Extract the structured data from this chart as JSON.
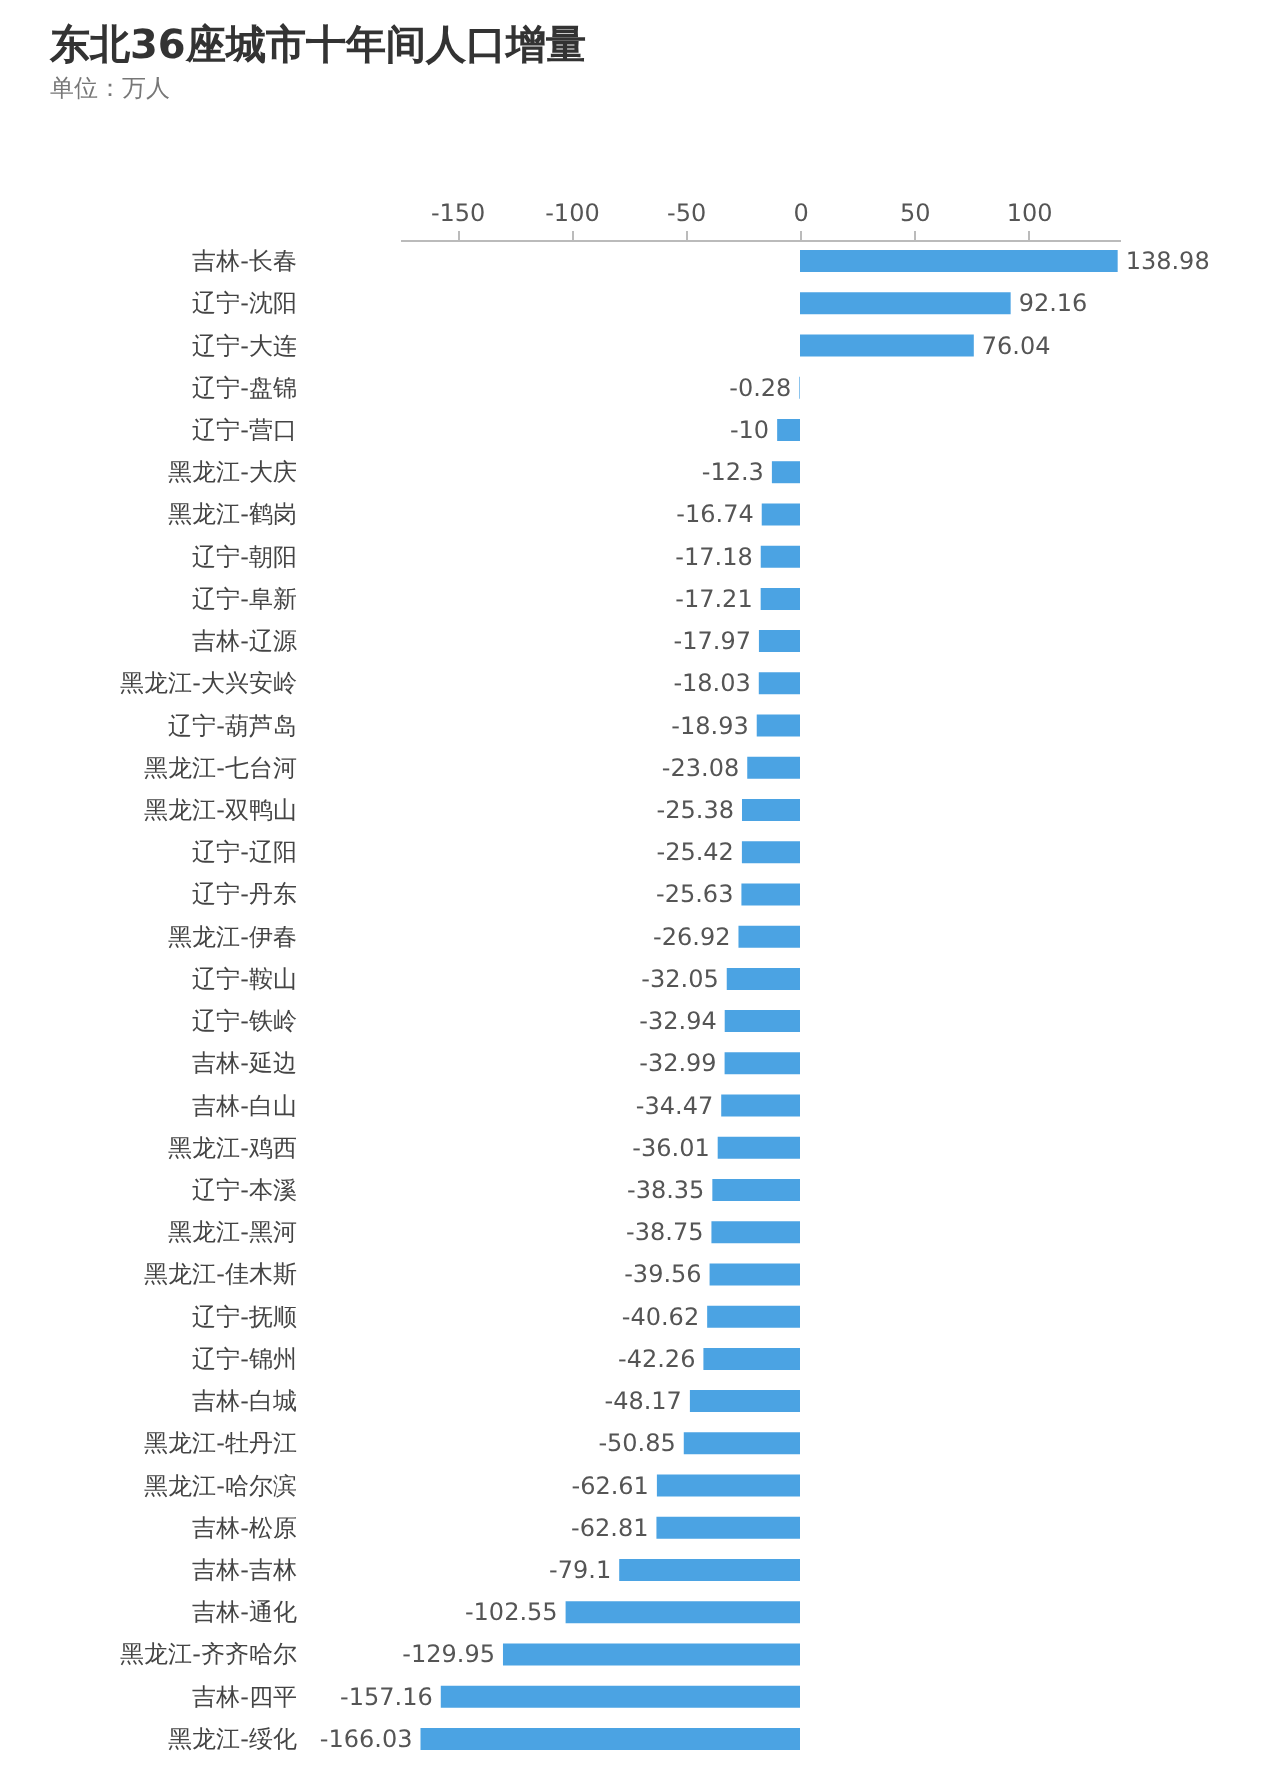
{
  "chart_data": {
    "type": "bar",
    "orientation": "horizontal",
    "title": "东北36座城市十年间人口增量",
    "subtitle": "单位：万人",
    "categories": [
      "吉林-长春",
      "辽宁-沈阳",
      "辽宁-大连",
      "辽宁-盘锦",
      "辽宁-营口",
      "黑龙江-大庆",
      "黑龙江-鹤岗",
      "辽宁-朝阳",
      "辽宁-阜新",
      "吉林-辽源",
      "黑龙江-大兴安岭",
      "辽宁-葫芦岛",
      "黑龙江-七台河",
      "黑龙江-双鸭山",
      "辽宁-辽阳",
      "辽宁-丹东",
      "黑龙江-伊春",
      "辽宁-鞍山",
      "辽宁-铁岭",
      "吉林-延边",
      "吉林-白山",
      "黑龙江-鸡西",
      "辽宁-本溪",
      "黑龙江-黑河",
      "黑龙江-佳木斯",
      "辽宁-抚顺",
      "辽宁-锦州",
      "吉林-白城",
      "黑龙江-牡丹江",
      "黑龙江-哈尔滨",
      "吉林-松原",
      "吉林-吉林",
      "吉林-通化",
      "黑龙江-齐齐哈尔",
      "吉林-四平",
      "黑龙江-绥化"
    ],
    "values": [
      138.98,
      92.16,
      76.04,
      -0.28,
      -10,
      -12.3,
      -16.74,
      -17.18,
      -17.21,
      -17.97,
      -18.03,
      -18.93,
      -23.08,
      -25.38,
      -25.42,
      -25.63,
      -26.92,
      -32.05,
      -32.94,
      -32.99,
      -34.47,
      -36.01,
      -38.35,
      -38.75,
      -39.56,
      -40.62,
      -42.26,
      -48.17,
      -50.85,
      -62.61,
      -62.81,
      -79.1,
      -102.55,
      -129.95,
      -157.16,
      -166.03
    ],
    "color": "#4ba3e3",
    "data_labels": true,
    "grid": false,
    "xlim": [
      -175,
      140
    ],
    "xticks": [
      -150,
      -100,
      -50,
      0,
      50,
      100
    ]
  }
}
